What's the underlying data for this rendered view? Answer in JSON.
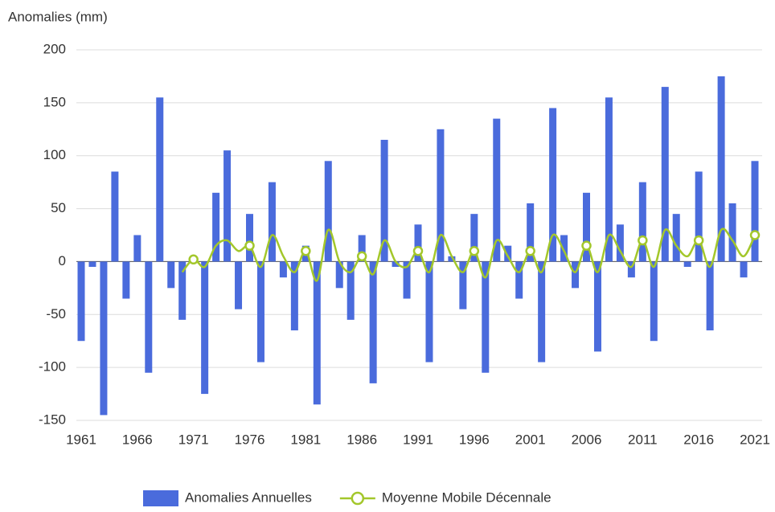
{
  "chart_data": {
    "type": "bar",
    "y_axis_label": "Anomalies (mm)",
    "x": [
      1961,
      1962,
      1963,
      1964,
      1965,
      1966,
      1967,
      1968,
      1969,
      1970,
      1971,
      1972,
      1973,
      1974,
      1975,
      1976,
      1977,
      1978,
      1979,
      1980,
      1981,
      1982,
      1983,
      1984,
      1985,
      1986,
      1987,
      1988,
      1989,
      1990,
      1991,
      1992,
      1993,
      1994,
      1995,
      1996,
      1997,
      1998,
      1999,
      2000,
      2001,
      2002,
      2003,
      2004,
      2005,
      2006,
      2007,
      2008,
      2009,
      2010,
      2011,
      2012,
      2013,
      2014,
      2015,
      2016,
      2017,
      2018,
      2019,
      2020,
      2021
    ],
    "series": [
      {
        "name": "Anomalies Annuelles",
        "type": "bar",
        "color": "#4a6bdc",
        "values": [
          -75,
          -5,
          -145,
          85,
          -35,
          25,
          -105,
          155,
          -25,
          -55,
          5,
          -125,
          65,
          105,
          -45,
          45,
          -95,
          75,
          -15,
          -65,
          15,
          -135,
          95,
          -25,
          -55,
          25,
          -115,
          115,
          -5,
          -35,
          35,
          -95,
          125,
          5,
          -45,
          45,
          -105,
          135,
          15,
          -35,
          55,
          -95,
          145,
          25,
          -25,
          65,
          -85,
          155,
          35,
          -15,
          75,
          -75,
          165,
          45,
          -5,
          85,
          -65,
          175,
          55,
          -15,
          95
        ]
      },
      {
        "name": "Moyenne Mobile Décennale",
        "type": "line",
        "color": "#a3c72b",
        "values": [
          null,
          null,
          null,
          null,
          null,
          null,
          null,
          null,
          null,
          -10,
          2,
          -5,
          15,
          20,
          10,
          15,
          -5,
          25,
          5,
          -10,
          10,
          -18,
          30,
          0,
          -10,
          5,
          -12,
          20,
          0,
          -5,
          10,
          -10,
          25,
          5,
          -10,
          10,
          -15,
          20,
          5,
          -10,
          10,
          -10,
          25,
          10,
          -10,
          15,
          -10,
          25,
          10,
          -5,
          20,
          -5,
          30,
          15,
          5,
          20,
          -5,
          30,
          20,
          5,
          25
        ]
      }
    ],
    "xlim": [
      1961,
      2021
    ],
    "xticks": [
      1961,
      1966,
      1971,
      1976,
      1981,
      1986,
      1991,
      1996,
      2001,
      2006,
      2011,
      2016,
      2021
    ],
    "ylim": [
      -150,
      200
    ],
    "yticks": [
      -150,
      -100,
      -50,
      0,
      50,
      100,
      150,
      200
    ],
    "grid": true,
    "legend": "bottom"
  }
}
